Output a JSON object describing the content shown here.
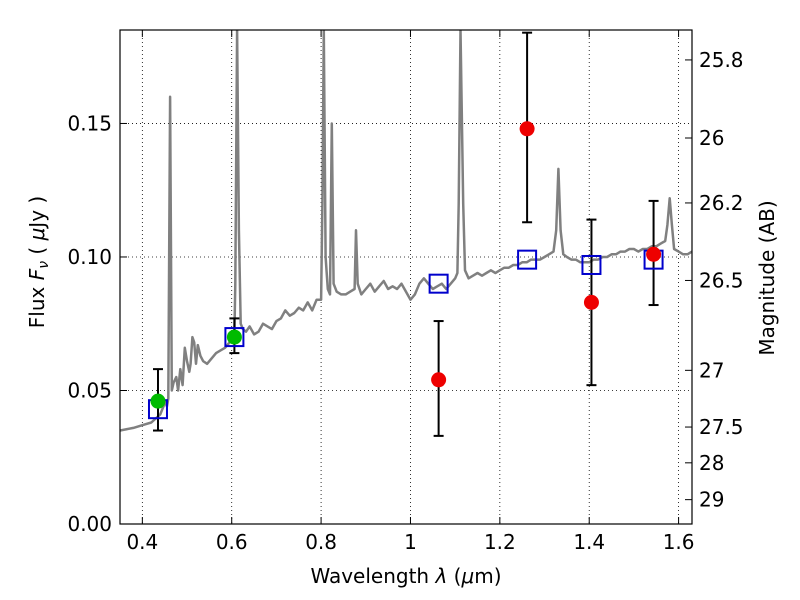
{
  "chart_data": {
    "type": "scatter",
    "xlabel": "Wavelength  λ (μm)",
    "ylabel": "Flux  F_ν  ( μJy )",
    "ylabel_parts": {
      "pre": "Flux  ",
      "var": "F",
      "sub": "ν",
      "post": "  ( ",
      "mu": "μ",
      "unit": "Jy )"
    },
    "xlabel_parts": {
      "pre": "Wavelength  ",
      "var": "λ",
      "open": " (",
      "mu": "μ",
      "unit": "m)"
    },
    "y2label": "Magnitude (AB)",
    "xlim": [
      0.35,
      1.63
    ],
    "ylim": [
      0.0,
      0.185
    ],
    "grid": true,
    "x_ticks": [
      {
        "value": 0.4,
        "label": "0.4"
      },
      {
        "value": 0.6,
        "label": "0.6"
      },
      {
        "value": 0.8,
        "label": "0.8"
      },
      {
        "value": 1.0,
        "label": "1"
      },
      {
        "value": 1.2,
        "label": "1.2"
      },
      {
        "value": 1.4,
        "label": "1.4"
      },
      {
        "value": 1.6,
        "label": "1.6"
      }
    ],
    "y_ticks": [
      {
        "value": 0.0,
        "label": "0.00"
      },
      {
        "value": 0.05,
        "label": "0.05"
      },
      {
        "value": 0.1,
        "label": "0.10"
      },
      {
        "value": 0.15,
        "label": "0.15"
      }
    ],
    "y2_ticks": [
      {
        "mag": 25.8,
        "label": "25.8"
      },
      {
        "mag": 26.0,
        "label": "26"
      },
      {
        "mag": 26.2,
        "label": "26.2"
      },
      {
        "mag": 26.5,
        "label": "26.5"
      },
      {
        "mag": 27.0,
        "label": "27"
      },
      {
        "mag": 27.5,
        "label": "27.5"
      },
      {
        "mag": 28.0,
        "label": "28"
      },
      {
        "mag": 29.0,
        "label": "29"
      }
    ],
    "colors": {
      "model": "#808080",
      "model_points": "#0000cc",
      "optical": "#00bb00",
      "nir": "#ee0000",
      "errorbar": "#000000"
    },
    "model_points": [
      {
        "x": 0.435,
        "y": 0.043
      },
      {
        "x": 0.606,
        "y": 0.07
      },
      {
        "x": 1.063,
        "y": 0.09
      },
      {
        "x": 1.261,
        "y": 0.099
      },
      {
        "x": 1.405,
        "y": 0.097
      },
      {
        "x": 1.544,
        "y": 0.099
      }
    ],
    "observed_optical": [
      {
        "x": 0.435,
        "y": 0.046,
        "err_low": 0.035,
        "err_high": 0.058
      },
      {
        "x": 0.606,
        "y": 0.07,
        "err_low": 0.064,
        "err_high": 0.077
      }
    ],
    "observed_nir": [
      {
        "x": 1.063,
        "y": 0.054,
        "err_low": 0.033,
        "err_high": 0.076
      },
      {
        "x": 1.261,
        "y": 0.148,
        "err_low": 0.113,
        "err_high": 0.184
      },
      {
        "x": 1.405,
        "y": 0.083,
        "err_low": 0.052,
        "err_high": 0.114
      },
      {
        "x": 1.544,
        "y": 0.101,
        "err_low": 0.082,
        "err_high": 0.121
      }
    ],
    "model_spectrum": [
      [
        0.35,
        0.035
      ],
      [
        0.38,
        0.036
      ],
      [
        0.4,
        0.037
      ],
      [
        0.42,
        0.038
      ],
      [
        0.44,
        0.041
      ],
      [
        0.452,
        0.046
      ],
      [
        0.455,
        0.044
      ],
      [
        0.458,
        0.047
      ],
      [
        0.462,
        0.16
      ],
      [
        0.466,
        0.05
      ],
      [
        0.47,
        0.053
      ],
      [
        0.476,
        0.055
      ],
      [
        0.48,
        0.05
      ],
      [
        0.485,
        0.058
      ],
      [
        0.49,
        0.052
      ],
      [
        0.495,
        0.066
      ],
      [
        0.5,
        0.061
      ],
      [
        0.505,
        0.057
      ],
      [
        0.508,
        0.06
      ],
      [
        0.512,
        0.07
      ],
      [
        0.516,
        0.068
      ],
      [
        0.52,
        0.06
      ],
      [
        0.524,
        0.067
      ],
      [
        0.53,
        0.063
      ],
      [
        0.536,
        0.061
      ],
      [
        0.545,
        0.06
      ],
      [
        0.555,
        0.062
      ],
      [
        0.565,
        0.064
      ],
      [
        0.575,
        0.065
      ],
      [
        0.585,
        0.066
      ],
      [
        0.595,
        0.068
      ],
      [
        0.6,
        0.07
      ],
      [
        0.606,
        0.071
      ],
      [
        0.608,
        0.09
      ],
      [
        0.612,
        0.185
      ],
      [
        0.616,
        0.11
      ],
      [
        0.62,
        0.075
      ],
      [
        0.625,
        0.073
      ],
      [
        0.632,
        0.072
      ],
      [
        0.64,
        0.074
      ],
      [
        0.65,
        0.071
      ],
      [
        0.66,
        0.072
      ],
      [
        0.67,
        0.075
      ],
      [
        0.68,
        0.074
      ],
      [
        0.69,
        0.073
      ],
      [
        0.7,
        0.076
      ],
      [
        0.71,
        0.077
      ],
      [
        0.72,
        0.08
      ],
      [
        0.73,
        0.078
      ],
      [
        0.74,
        0.079
      ],
      [
        0.75,
        0.081
      ],
      [
        0.76,
        0.08
      ],
      [
        0.77,
        0.083
      ],
      [
        0.78,
        0.08
      ],
      [
        0.79,
        0.084
      ],
      [
        0.8,
        0.084
      ],
      [
        0.803,
        0.12
      ],
      [
        0.806,
        0.185
      ],
      [
        0.81,
        0.1
      ],
      [
        0.815,
        0.088
      ],
      [
        0.82,
        0.086
      ],
      [
        0.824,
        0.15
      ],
      [
        0.828,
        0.09
      ],
      [
        0.835,
        0.087
      ],
      [
        0.845,
        0.086
      ],
      [
        0.855,
        0.086
      ],
      [
        0.865,
        0.087
      ],
      [
        0.875,
        0.088
      ],
      [
        0.878,
        0.11
      ],
      [
        0.882,
        0.09
      ],
      [
        0.89,
        0.086
      ],
      [
        0.9,
        0.088
      ],
      [
        0.91,
        0.09
      ],
      [
        0.92,
        0.087
      ],
      [
        0.93,
        0.089
      ],
      [
        0.94,
        0.091
      ],
      [
        0.95,
        0.088
      ],
      [
        0.96,
        0.089
      ],
      [
        0.97,
        0.088
      ],
      [
        0.98,
        0.09
      ],
      [
        0.99,
        0.087
      ],
      [
        1.0,
        0.084
      ],
      [
        1.01,
        0.086
      ],
      [
        1.02,
        0.09
      ],
      [
        1.03,
        0.092
      ],
      [
        1.04,
        0.09
      ],
      [
        1.05,
        0.088
      ],
      [
        1.06,
        0.089
      ],
      [
        1.07,
        0.09
      ],
      [
        1.08,
        0.088
      ],
      [
        1.09,
        0.09
      ],
      [
        1.1,
        0.092
      ],
      [
        1.105,
        0.094
      ],
      [
        1.108,
        0.12
      ],
      [
        1.112,
        0.185
      ],
      [
        1.118,
        0.12
      ],
      [
        1.122,
        0.095
      ],
      [
        1.13,
        0.092
      ],
      [
        1.14,
        0.093
      ],
      [
        1.15,
        0.094
      ],
      [
        1.16,
        0.093
      ],
      [
        1.17,
        0.094
      ],
      [
        1.18,
        0.095
      ],
      [
        1.19,
        0.094
      ],
      [
        1.2,
        0.095
      ],
      [
        1.21,
        0.096
      ],
      [
        1.22,
        0.096
      ],
      [
        1.23,
        0.097
      ],
      [
        1.24,
        0.097
      ],
      [
        1.25,
        0.098
      ],
      [
        1.26,
        0.098
      ],
      [
        1.27,
        0.099
      ],
      [
        1.28,
        0.099
      ],
      [
        1.29,
        0.099
      ],
      [
        1.3,
        0.1
      ],
      [
        1.31,
        0.101
      ],
      [
        1.32,
        0.102
      ],
      [
        1.326,
        0.11
      ],
      [
        1.331,
        0.133
      ],
      [
        1.336,
        0.11
      ],
      [
        1.342,
        0.101
      ],
      [
        1.35,
        0.1
      ],
      [
        1.36,
        0.099
      ],
      [
        1.37,
        0.099
      ],
      [
        1.38,
        0.098
      ],
      [
        1.39,
        0.098
      ],
      [
        1.4,
        0.098
      ],
      [
        1.41,
        0.099
      ],
      [
        1.42,
        0.099
      ],
      [
        1.43,
        0.1
      ],
      [
        1.44,
        0.1
      ],
      [
        1.45,
        0.101
      ],
      [
        1.46,
        0.101
      ],
      [
        1.47,
        0.102
      ],
      [
        1.48,
        0.102
      ],
      [
        1.49,
        0.103
      ],
      [
        1.5,
        0.103
      ],
      [
        1.51,
        0.102
      ],
      [
        1.52,
        0.103
      ],
      [
        1.53,
        0.103
      ],
      [
        1.54,
        0.104
      ],
      [
        1.55,
        0.104
      ],
      [
        1.56,
        0.105
      ],
      [
        1.57,
        0.106
      ],
      [
        1.575,
        0.112
      ],
      [
        1.58,
        0.122
      ],
      [
        1.585,
        0.112
      ],
      [
        1.59,
        0.103
      ],
      [
        1.6,
        0.102
      ],
      [
        1.61,
        0.101
      ],
      [
        1.62,
        0.101
      ],
      [
        1.63,
        0.102
      ]
    ]
  }
}
